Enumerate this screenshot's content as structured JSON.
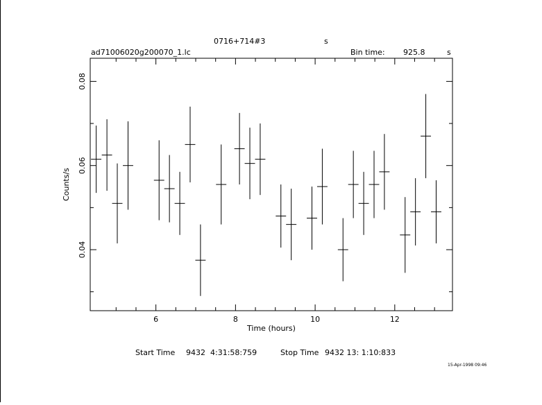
{
  "header": {
    "source": "0716+714#3",
    "source_unit": "s",
    "filename": "ad71006020g200070_1.lc",
    "bin_time_label": "Bin time:",
    "bin_time_value": "925.8",
    "bin_time_unit": "s"
  },
  "footer": {
    "start_label": "Start Time",
    "start_value": "9432  4:31:58:759",
    "stop_label": "Stop Time",
    "stop_value": "9432 13: 1:10:833",
    "date_stamp": "15-Apr-1998 09:46"
  },
  "chart_data": {
    "type": "scatter",
    "title": "0716+714#3",
    "xlabel": "Time (hours)",
    "ylabel": "Counts/s",
    "xlim": [
      4.35,
      13.45
    ],
    "ylim": [
      0.0255,
      0.0855
    ],
    "x_ticks": [
      6,
      8,
      10,
      12
    ],
    "y_ticks": [
      0.04,
      0.06,
      0.08
    ],
    "x_tick_labels": [
      "6",
      "8",
      "10",
      "12"
    ],
    "y_tick_labels": [
      "0.04",
      "0.06",
      "0.08"
    ],
    "grid": false,
    "legend": "none",
    "series": [
      {
        "points": [
          {
            "x": 4.5,
            "y": 0.0615,
            "yerr": 0.008,
            "xerr": 0.13
          },
          {
            "x": 4.77,
            "y": 0.0625,
            "yerr": 0.0085,
            "xerr": 0.13
          },
          {
            "x": 5.03,
            "y": 0.051,
            "yerr": 0.0095,
            "xerr": 0.13
          },
          {
            "x": 5.3,
            "y": 0.06,
            "yerr": 0.0105,
            "xerr": 0.13
          },
          {
            "x": 6.08,
            "y": 0.0565,
            "yerr": 0.0095,
            "xerr": 0.13
          },
          {
            "x": 6.34,
            "y": 0.0545,
            "yerr": 0.008,
            "xerr": 0.13
          },
          {
            "x": 6.6,
            "y": 0.051,
            "yerr": 0.0075,
            "xerr": 0.13
          },
          {
            "x": 6.86,
            "y": 0.065,
            "yerr": 0.009,
            "xerr": 0.13
          },
          {
            "x": 7.12,
            "y": 0.0375,
            "yerr": 0.0085,
            "xerr": 0.13
          },
          {
            "x": 7.64,
            "y": 0.0555,
            "yerr": 0.0095,
            "xerr": 0.13
          },
          {
            "x": 8.1,
            "y": 0.064,
            "yerr": 0.0085,
            "xerr": 0.13
          },
          {
            "x": 8.36,
            "y": 0.0605,
            "yerr": 0.0085,
            "xerr": 0.13
          },
          {
            "x": 8.62,
            "y": 0.0615,
            "yerr": 0.0085,
            "xerr": 0.13
          },
          {
            "x": 9.14,
            "y": 0.048,
            "yerr": 0.0075,
            "xerr": 0.13
          },
          {
            "x": 9.4,
            "y": 0.046,
            "yerr": 0.0085,
            "xerr": 0.13
          },
          {
            "x": 9.92,
            "y": 0.0475,
            "yerr": 0.0075,
            "xerr": 0.13
          },
          {
            "x": 10.18,
            "y": 0.055,
            "yerr": 0.009,
            "xerr": 0.13
          },
          {
            "x": 10.7,
            "y": 0.04,
            "yerr": 0.0075,
            "xerr": 0.13
          },
          {
            "x": 10.96,
            "y": 0.0555,
            "yerr": 0.008,
            "xerr": 0.13
          },
          {
            "x": 11.22,
            "y": 0.051,
            "yerr": 0.0075,
            "xerr": 0.13
          },
          {
            "x": 11.48,
            "y": 0.0555,
            "yerr": 0.008,
            "xerr": 0.13
          },
          {
            "x": 11.74,
            "y": 0.0585,
            "yerr": 0.009,
            "xerr": 0.13
          },
          {
            "x": 12.26,
            "y": 0.0435,
            "yerr": 0.009,
            "xerr": 0.13
          },
          {
            "x": 12.52,
            "y": 0.049,
            "yerr": 0.008,
            "xerr": 0.13
          },
          {
            "x": 12.78,
            "y": 0.067,
            "yerr": 0.01,
            "xerr": 0.13
          },
          {
            "x": 13.04,
            "y": 0.049,
            "yerr": 0.0075,
            "xerr": 0.13
          }
        ]
      }
    ]
  }
}
